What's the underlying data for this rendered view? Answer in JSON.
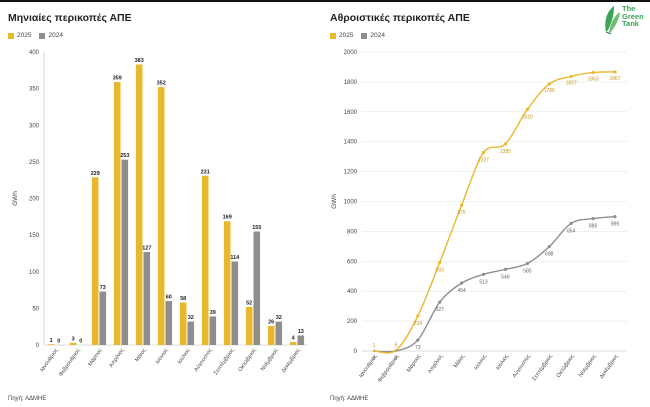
{
  "header": {
    "brand_color": "#3aa655"
  },
  "logo": {
    "line1": "The",
    "line2": "Green",
    "line3": "Tank"
  },
  "colors": {
    "s2025": "#e8b82e",
    "s2024": "#8e8e8e"
  },
  "left": {
    "title": "Μηνιαίες περικοπές ΑΠΕ",
    "legend": [
      "2025",
      "2024"
    ],
    "source": "Πηγή: ΑΔΜΗΕ"
  },
  "right": {
    "title": "Αθροιστικές περικοπές ΑΠΕ",
    "legend": [
      "2025",
      "2024"
    ],
    "source": "Πηγή: ΑΔΜΗΕ"
  },
  "chart_data": [
    {
      "type": "bar",
      "title": "Μηνιαίες περικοπές ΑΠΕ",
      "xlabel": "",
      "ylabel": "GWh",
      "ylim": [
        0,
        400
      ],
      "yticks": [
        0,
        50,
        100,
        150,
        200,
        250,
        300,
        350,
        400
      ],
      "categories": [
        "Ιανουάριος",
        "Φεβρουάριος",
        "Μάρτιος",
        "Απρίλιος",
        "Μάιος",
        "Ιούνιος",
        "Ιούλιος",
        "Αύγουστος",
        "Σεπτέμβριος",
        "Οκτώβριος",
        "Νοέμβριος",
        "Δεκέμβριος"
      ],
      "series": [
        {
          "name": "2025",
          "values": [
            1,
            3,
            229,
            359,
            383,
            352,
            58,
            231,
            169,
            52,
            26,
            4
          ]
        },
        {
          "name": "2024",
          "values": [
            0,
            0,
            73,
            253,
            127,
            60,
            32,
            39,
            114,
            155,
            32,
            13
          ]
        }
      ],
      "legend_position": "top-left",
      "grid": false
    },
    {
      "type": "line",
      "title": "Αθροιστικές περικοπές ΑΠΕ",
      "xlabel": "",
      "ylabel": "GWh",
      "ylim": [
        0,
        2000
      ],
      "yticks": [
        0,
        200,
        400,
        600,
        800,
        1000,
        1200,
        1400,
        1600,
        1800,
        2000
      ],
      "categories": [
        "Ιανουάριος",
        "Φεβρουάριος",
        "Μάρτιος",
        "Απρίλιος",
        "Μάιος",
        "Ιούνιος",
        "Ιούλιος",
        "Αύγουστος",
        "Σεπτέμβριος",
        "Οκτώβριος",
        "Νοέμβριος",
        "Δεκέμβριος"
      ],
      "series": [
        {
          "name": "2025",
          "values": [
            1,
            5,
            234,
            593,
            975,
            1327,
            1385,
            1616,
            1786,
            1837,
            1863,
            1867
          ]
        },
        {
          "name": "2024",
          "values": [
            0,
            0,
            73,
            327,
            454,
            513,
            546,
            585,
            698,
            854,
            886,
            899
          ]
        }
      ],
      "legend_position": "top-left",
      "grid": true
    }
  ]
}
